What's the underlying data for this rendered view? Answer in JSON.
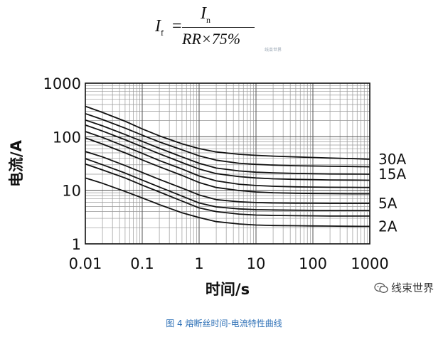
{
  "formula": {
    "lhs": "I",
    "lhs_sub": "f",
    "eq": "=",
    "num": "I",
    "num_sub": "n",
    "den": "RR×75%"
  },
  "watermark_small": "线束世界",
  "watermark": "线束世界",
  "caption": "图 4 熔断丝时间-电流特性曲线",
  "chart_data": {
    "type": "line",
    "title": "",
    "xlabel": "时间/s",
    "ylabel": "电流/A",
    "xscale": "log",
    "yscale": "log",
    "xlim": [
      0.01,
      1000
    ],
    "ylim": [
      1,
      1000
    ],
    "grid": true,
    "x_ticks": [
      0.01,
      0.1,
      1,
      10,
      100,
      1000
    ],
    "x_tick_labels": [
      "0.01",
      "0.1",
      "1",
      "10",
      "100",
      "1000"
    ],
    "y_ticks": [
      1,
      10,
      100,
      1000
    ],
    "y_tick_labels": [
      "1",
      "10",
      "100",
      "1000"
    ],
    "x": [
      0.01,
      0.02,
      0.05,
      0.1,
      0.2,
      0.5,
      1,
      2,
      5,
      10,
      20,
      50,
      100,
      200,
      500,
      1000
    ],
    "series": [
      {
        "values": [
          17,
          13.5,
          9.5,
          7.2,
          5.4,
          3.8,
          3.1,
          2.6,
          2.35,
          2.25,
          2.2,
          2.18,
          2.16,
          2.15,
          2.13,
          2.12
        ]
      },
      {
        "values": [
          31,
          24,
          17,
          12.5,
          9.3,
          6.3,
          4.7,
          4.0,
          3.6,
          3.45,
          3.4,
          3.35,
          3.33,
          3.3,
          3.3,
          3.3
        ]
      },
      {
        "values": [
          39,
          30,
          21,
          15.5,
          11.5,
          7.8,
          5.8,
          4.9,
          4.5,
          4.35,
          4.3,
          4.25,
          4.22,
          4.2,
          4.2,
          4.2
        ]
      },
      {
        "values": [
          53,
          42,
          29,
          21.5,
          16,
          11,
          8.2,
          6.7,
          6.1,
          5.9,
          5.8,
          5.75,
          5.72,
          5.7,
          5.7,
          5.7
        ]
      },
      {
        "values": [
          95,
          73,
          50,
          37,
          27.5,
          19,
          14,
          11.3,
          9.9,
          9.3,
          9.0,
          8.8,
          8.7,
          8.65,
          8.6,
          8.6
        ]
      },
      {
        "values": [
          125,
          97,
          66,
          49,
          36,
          25,
          18.5,
          15,
          13,
          12.3,
          11.9,
          11.6,
          11.5,
          11.4,
          11.35,
          11.3
        ]
      },
      {
        "values": [
          165,
          128,
          88,
          65,
          48,
          33,
          25,
          20.5,
          18,
          17,
          16.4,
          16,
          15.8,
          15.6,
          15.5,
          15.4
        ]
      },
      {
        "values": [
          205,
          160,
          110,
          82,
          61,
          42,
          32,
          26,
          23,
          21.8,
          21.2,
          20.7,
          20.4,
          20.2,
          20.1,
          20
        ]
      },
      {
        "values": [
          270,
          210,
          145,
          107,
          80,
          57,
          44,
          36.5,
          32,
          30.5,
          29.6,
          28.8,
          28.4,
          28.1,
          27.8,
          27.5
        ]
      },
      {
        "values": [
          370,
          285,
          195,
          140,
          104,
          74,
          60,
          52,
          47,
          45,
          43.5,
          42,
          41,
          40,
          39,
          38
        ]
      }
    ],
    "annotations": [
      {
        "text": "30A",
        "y": 38
      },
      {
        "text": "15A",
        "y": 20
      },
      {
        "text": "5A",
        "y": 5.7
      },
      {
        "text": "2A",
        "y": 2.12
      }
    ]
  }
}
